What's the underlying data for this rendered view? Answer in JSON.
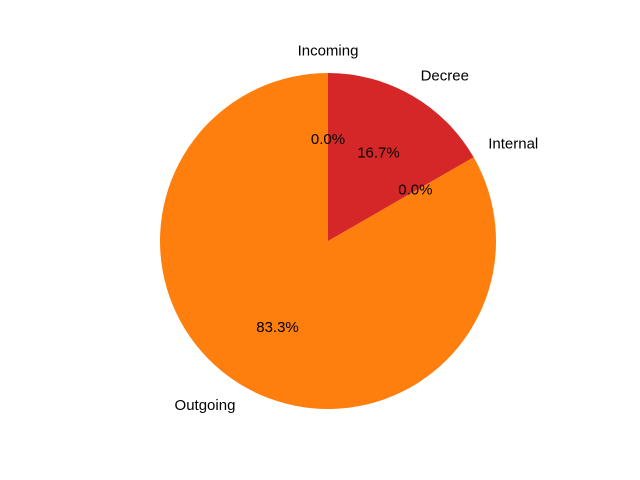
{
  "chart_data": {
    "type": "pie",
    "title": "",
    "slices": [
      {
        "label": "Incoming",
        "value": 0.0,
        "percent_label": "0.0%",
        "color": "#1f77b4"
      },
      {
        "label": "Outgoing",
        "value": 83.3,
        "percent_label": "83.3%",
        "color": "#ff7f0e"
      },
      {
        "label": "Internal",
        "value": 0.0,
        "percent_label": "0.0%",
        "color": "#2ca02c"
      },
      {
        "label": "Decree",
        "value": 16.7,
        "percent_label": "16.7%",
        "color": "#d62728"
      }
    ],
    "start_angle_deg": 90,
    "direction": "counterclockwise",
    "legend": "none"
  }
}
